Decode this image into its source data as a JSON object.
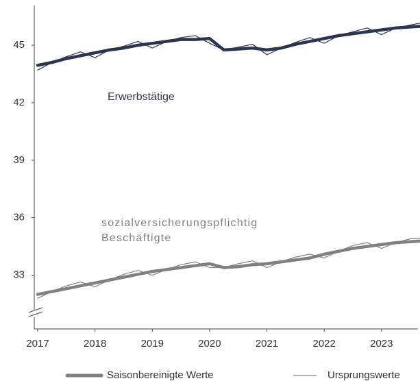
{
  "chart_data": {
    "type": "line",
    "x": [
      2017,
      2017.25,
      2017.5,
      2017.75,
      2018,
      2018.25,
      2018.5,
      2018.75,
      2019,
      2019.25,
      2019.5,
      2019.75,
      2020,
      2020.25,
      2020.5,
      2020.75,
      2021,
      2021.25,
      2021.5,
      2021.75,
      2022,
      2022.25,
      2022.5,
      2022.75,
      2023,
      2023.25,
      2023.5,
      2023.75
    ],
    "xlim": [
      2017,
      2023.6
    ],
    "xticks": [
      2017,
      2018,
      2019,
      2020,
      2021,
      2022,
      2023
    ],
    "ylim": [
      30.2,
      47
    ],
    "yticks": [
      33,
      36,
      39,
      42,
      45
    ],
    "legend": [
      "Saisonbereinigte Werte",
      "Ursprungswerte"
    ],
    "series": [
      {
        "name": [
          "Erwerbstätige"
        ],
        "color": "#2b3552",
        "sa_values": [
          43.95,
          44.1,
          44.3,
          44.45,
          44.6,
          44.75,
          44.85,
          45.0,
          45.1,
          45.2,
          45.3,
          45.3,
          45.35,
          44.75,
          44.8,
          44.85,
          44.75,
          44.85,
          45.05,
          45.2,
          45.35,
          45.5,
          45.6,
          45.7,
          45.8,
          45.9,
          45.95,
          46.0
        ],
        "values": [
          43.7,
          44.1,
          44.4,
          44.65,
          44.35,
          44.75,
          44.95,
          45.2,
          44.85,
          45.2,
          45.4,
          45.5,
          45.1,
          44.75,
          44.9,
          45.05,
          44.5,
          44.85,
          45.15,
          45.4,
          45.1,
          45.5,
          45.7,
          45.9,
          45.55,
          45.9,
          46.05,
          46.2
        ]
      },
      {
        "name": [
          "sozialversicherungspflichtig",
          "Beschäftigte"
        ],
        "color": "#808080",
        "sa_values": [
          32.0,
          32.15,
          32.3,
          32.45,
          32.6,
          32.75,
          32.9,
          33.05,
          33.2,
          33.3,
          33.4,
          33.5,
          33.6,
          33.4,
          33.45,
          33.55,
          33.6,
          33.7,
          33.8,
          33.9,
          34.1,
          34.25,
          34.4,
          34.5,
          34.6,
          34.7,
          34.75,
          34.8
        ],
        "values": [
          31.8,
          32.15,
          32.45,
          32.65,
          32.4,
          32.75,
          33.05,
          33.25,
          33.0,
          33.3,
          33.55,
          33.7,
          33.4,
          33.4,
          33.6,
          33.75,
          33.4,
          33.7,
          33.95,
          34.1,
          33.9,
          34.25,
          34.55,
          34.7,
          34.4,
          34.7,
          34.9,
          34.95
        ]
      }
    ]
  }
}
